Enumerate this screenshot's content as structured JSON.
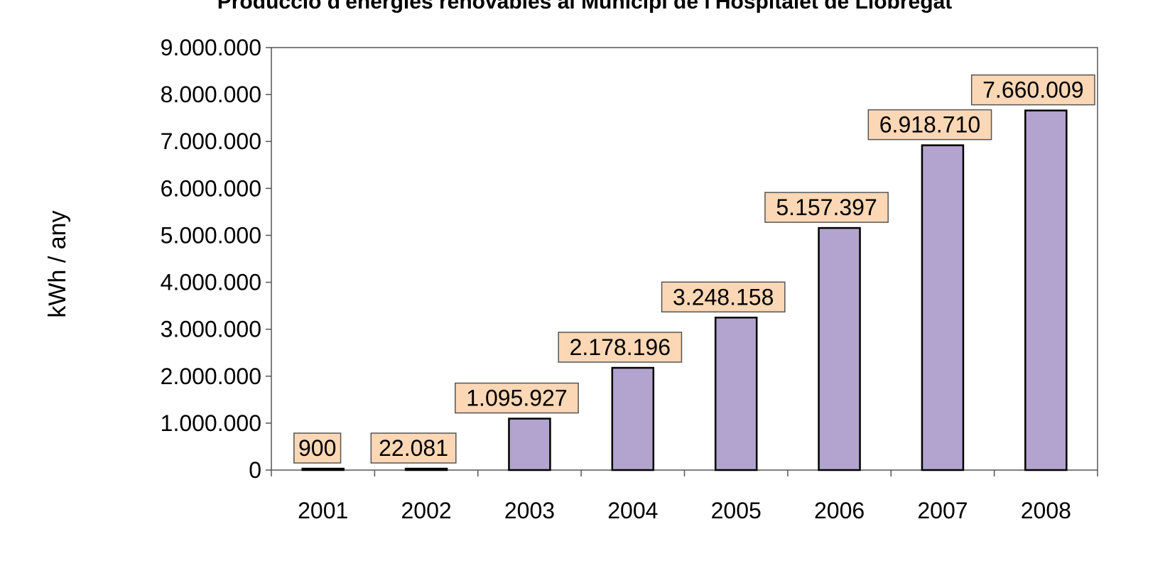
{
  "chart_data": {
    "type": "bar",
    "title": "Producció d'energies renovables al Municipi de l'Hospitalet de Llobregat",
    "xlabel": "",
    "ylabel": "kWh / any",
    "categories": [
      "2001",
      "2002",
      "2003",
      "2004",
      "2005",
      "2006",
      "2007",
      "2008"
    ],
    "values": [
      900,
      22081,
      1095927,
      2178196,
      3248158,
      5157397,
      6918710,
      7660009
    ],
    "value_labels": [
      "900",
      "22.081",
      "1.095.927",
      "2.178.196",
      "3.248.158",
      "5.157.397",
      "6.918.710",
      "7.660.009"
    ],
    "ylim": [
      0,
      9000000
    ],
    "yticks": [
      0,
      1000000,
      2000000,
      3000000,
      4000000,
      5000000,
      6000000,
      7000000,
      8000000,
      9000000
    ],
    "ytick_labels": [
      "0",
      "1.000.000",
      "2.000.000",
      "3.000.000",
      "4.000.000",
      "5.000.000",
      "6.000.000",
      "7.000.000",
      "8.000.000",
      "9.000.000"
    ],
    "grid": false,
    "legend": "none",
    "colors": {
      "bar_fill": "#b2a4ce",
      "bar_stroke": "#000000",
      "label_fill": "#fbd7b5",
      "label_stroke": "#555555",
      "axis": "#555555",
      "text": "#000000"
    }
  }
}
